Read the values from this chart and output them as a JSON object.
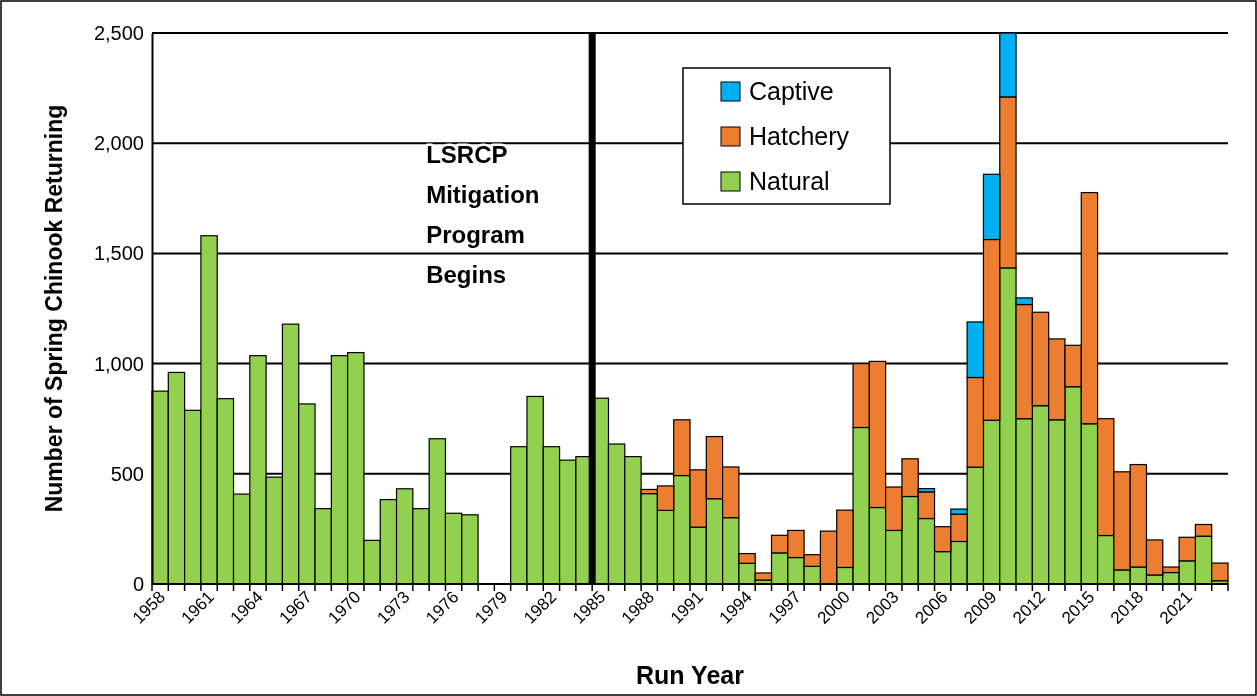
{
  "chart_data": {
    "type": "bar",
    "stacked": true,
    "xlabel": "Run Year",
    "ylabel": "Number of Spring Chinook Returning",
    "categories": [
      "1958",
      null,
      null,
      "1961",
      null,
      null,
      "1964",
      null,
      null,
      "1967",
      null,
      null,
      "1970",
      null,
      null,
      "1973",
      null,
      null,
      "1976",
      null,
      null,
      "1979",
      null,
      null,
      "1982",
      null,
      null,
      "1985",
      null,
      null,
      "1988",
      null,
      null,
      "1991",
      null,
      null,
      "1994",
      null,
      null,
      "1997",
      null,
      null,
      "2000",
      null,
      null,
      "2003",
      null,
      null,
      "2006",
      null,
      null,
      "2009",
      null,
      null,
      "2012",
      null,
      null,
      "2015",
      null,
      null,
      "2018",
      null,
      null,
      "2021",
      null,
      null
    ],
    "series": [
      {
        "name": "Natural",
        "color": "#92d050",
        "values": [
          875,
          960,
          788,
          1580,
          841,
          408,
          1036,
          485,
          1179,
          817,
          342,
          1036,
          1050,
          198,
          383,
          432,
          342,
          659,
          321,
          314,
          null,
          null,
          623,
          851,
          623,
          562,
          578,
          843,
          635,
          578,
          410,
          334,
          492,
          258,
          387,
          301,
          94,
          18,
          141,
          120,
          80,
          null,
          75,
          710,
          347,
          243,
          397,
          297,
          147,
          193,
          530,
          743,
          1434,
          750,
          809,
          745,
          895,
          727,
          220,
          64,
          77,
          41,
          52,
          105,
          217,
          15
        ]
      },
      {
        "name": "Hatchery",
        "color": "#ed7d31",
        "values": [
          null,
          null,
          null,
          null,
          null,
          null,
          null,
          null,
          null,
          null,
          null,
          null,
          null,
          null,
          null,
          null,
          null,
          null,
          null,
          null,
          null,
          null,
          null,
          null,
          null,
          null,
          null,
          null,
          null,
          null,
          19,
          111,
          253,
          260,
          282,
          230,
          44,
          32,
          80,
          123,
          53,
          240,
          260,
          290,
          663,
          197,
          171,
          121,
          113,
          124,
          407,
          820,
          776,
          518,
          424,
          367,
          188,
          1049,
          530,
          445,
          465,
          159,
          25,
          107,
          53,
          80
        ]
      },
      {
        "name": "Captive",
        "color": "#00b0f0",
        "values": [
          null,
          null,
          null,
          null,
          null,
          null,
          null,
          null,
          null,
          null,
          null,
          null,
          null,
          null,
          null,
          null,
          null,
          null,
          null,
          null,
          null,
          null,
          null,
          null,
          null,
          null,
          null,
          null,
          null,
          null,
          null,
          null,
          null,
          null,
          null,
          null,
          null,
          null,
          null,
          null,
          null,
          null,
          null,
          null,
          null,
          null,
          null,
          15,
          null,
          23,
          252,
          296,
          290,
          30,
          null,
          null,
          null,
          null,
          null,
          null,
          null,
          null,
          null,
          null,
          null,
          null
        ]
      }
    ],
    "ylim": [
      0,
      2500
    ],
    "yticks": [
      0,
      500,
      {
        "value": 1000,
        "label": "1,000"
      },
      {
        "value": 1500,
        "label": "1,500"
      },
      {
        "value": 2000,
        "label": "2,000"
      },
      {
        "value": 2500,
        "label": "2,500"
      }
    ],
    "grid": "y",
    "legend": "top",
    "ref_lines": [
      {
        "axis": "x",
        "value": "1985",
        "label": "LSRCP Mitigation Program Begins",
        "color": "#000000"
      }
    ]
  }
}
